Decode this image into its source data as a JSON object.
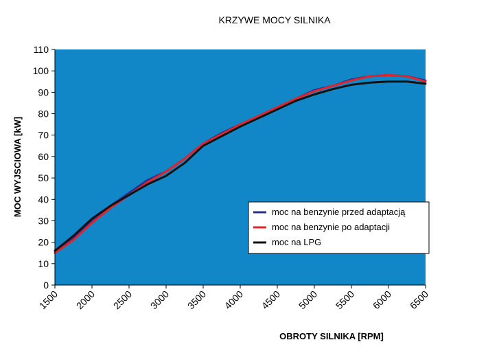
{
  "chart_data": {
    "type": "line",
    "title": "KRZYWE MOCY SILNIKA",
    "xlabel": "OBROTY SILNIKA  [RPM]",
    "ylabel": "MOC WYJSCIOWA [kW]",
    "xlim": [
      1500,
      6500
    ],
    "ylim": [
      0,
      110
    ],
    "xticks": [
      "1500",
      "2000",
      "2500",
      "3000",
      "3500",
      "4000",
      "4500",
      "5000",
      "5500",
      "6000",
      "6500"
    ],
    "yticks": [
      "0",
      "10",
      "20",
      "30",
      "40",
      "50",
      "60",
      "70",
      "80",
      "90",
      "100",
      "110"
    ],
    "grid": false,
    "legend_position": "right",
    "plot_background": "#1187C8",
    "series": [
      {
        "name": "moc na benzynie przed adaptacją",
        "color": "#2B2F8C",
        "x": [
          1500,
          1750,
          2000,
          2250,
          2500,
          2750,
          3000,
          3250,
          3500,
          3750,
          4000,
          4250,
          4500,
          4750,
          5000,
          5250,
          5500,
          5750,
          6000,
          6250,
          6500
        ],
        "y": [
          16,
          22,
          30,
          37,
          43,
          49,
          53,
          59,
          66,
          71,
          75,
          79,
          83,
          87,
          91,
          93,
          96,
          97.5,
          98,
          97.5,
          95.5
        ]
      },
      {
        "name": "moc na benzynie po adaptacji",
        "color": "#E0262B",
        "x": [
          1500,
          1750,
          2000,
          2250,
          2500,
          2750,
          3000,
          3250,
          3500,
          3750,
          4000,
          4250,
          4500,
          4750,
          5000,
          5250,
          5500,
          5750,
          6000,
          6250,
          6500
        ],
        "y": [
          15,
          21,
          29,
          36,
          42,
          48,
          53,
          59,
          66,
          70.5,
          75,
          79,
          83,
          87,
          90.5,
          93,
          95.5,
          97.5,
          98,
          97.5,
          95
        ]
      },
      {
        "name": "moc na LPG",
        "color": "#111111",
        "x": [
          1500,
          1750,
          2000,
          2250,
          2500,
          2750,
          3000,
          3250,
          3500,
          3750,
          4000,
          4250,
          4500,
          4750,
          5000,
          5250,
          5500,
          5750,
          6000,
          6250,
          6500
        ],
        "y": [
          16,
          23,
          31,
          37,
          42,
          47,
          51,
          57,
          65,
          69.5,
          74,
          78,
          82,
          86,
          89,
          91.5,
          93.5,
          94.5,
          95,
          95,
          94
        ]
      }
    ]
  }
}
